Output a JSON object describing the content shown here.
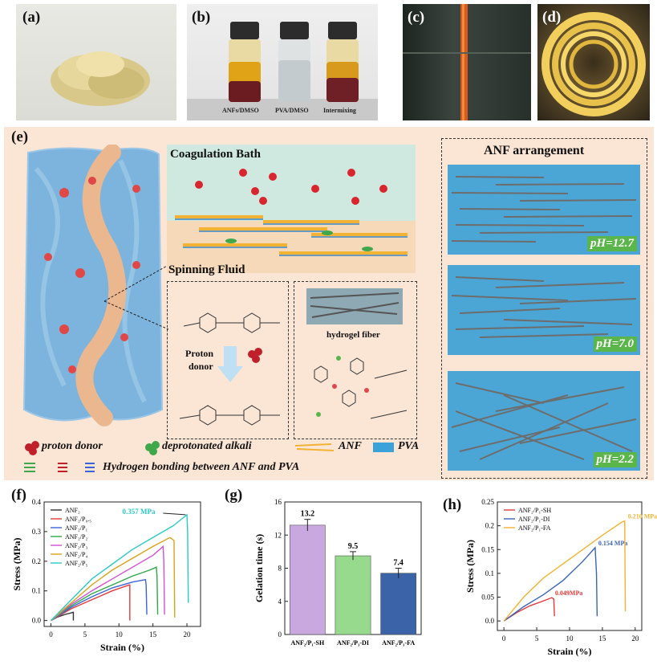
{
  "panels": {
    "a": "(a)",
    "b": "(b)",
    "c": "(c)",
    "d": "(d)",
    "e": "(e)",
    "f": "(f)",
    "g": "(g)",
    "h": "(h)"
  },
  "vials": [
    "ANFs/DMSO",
    "PVA/DMSO",
    "Intermixing"
  ],
  "schematic": {
    "coag": "Coagulation Bath",
    "spin": "Spinning Fluid",
    "arrangement": "ANF arrangement",
    "hydrogel": "hydrogel fiber",
    "proton": "Proton",
    "donor": "donor",
    "ph": [
      "pH=12.7",
      "pH=7.0",
      "pH=2.2"
    ],
    "legend": {
      "proton_donor": "proton donor",
      "deprotonated": "deprotonated alkali",
      "anf": "ANF",
      "pva": "PVA",
      "hbond": "Hydrogen bonding between ANF and PVA"
    }
  },
  "colors": {
    "bath": "#cfe9e0",
    "anf": "#f2b233",
    "pva": "#3aa2d9",
    "green": "#5ab54b",
    "red": "#c0202a"
  },
  "chart_data": [
    {
      "type": "line",
      "panel": "f",
      "xlabel": "Strain (%)",
      "ylabel": "Stress (MPa)",
      "xlim": [
        -1,
        22
      ],
      "ylim": [
        -0.02,
        0.4
      ],
      "xticks": [
        0,
        5,
        10,
        15,
        20
      ],
      "yticks": [
        0.0,
        0.1,
        0.2,
        0.3,
        0.4
      ],
      "legend_position": "top-left",
      "annotation": "0.357 MPa",
      "series": [
        {
          "name": "ANF₂",
          "color": "#333333",
          "x": [
            0,
            1,
            2,
            3,
            3.3,
            3.3
          ],
          "y": [
            0,
            0.012,
            0.02,
            0.026,
            0.028,
            0
          ]
        },
        {
          "name": "ANF₂/P₀.₅",
          "color": "#e23a3a",
          "x": [
            0,
            3,
            6,
            9,
            11.5,
            11.6,
            11.6
          ],
          "y": [
            0,
            0.04,
            0.07,
            0.1,
            0.12,
            0.12,
            0
          ]
        },
        {
          "name": "ANF₂/P₁",
          "color": "#3a64d8",
          "x": [
            0,
            3,
            6,
            9,
            12,
            13.9,
            14,
            14.1
          ],
          "y": [
            0,
            0.045,
            0.08,
            0.11,
            0.13,
            0.138,
            0.12,
            0.02
          ]
        },
        {
          "name": "ANF₂/P₂",
          "color": "#2da84a",
          "x": [
            0,
            3,
            6,
            9,
            12,
            14.5,
            15.5,
            15.6,
            15.7
          ],
          "y": [
            0,
            0.05,
            0.09,
            0.12,
            0.15,
            0.17,
            0.18,
            0.15,
            0.02
          ]
        },
        {
          "name": "ANF₂/P₃",
          "color": "#d24fd6",
          "x": [
            0,
            3,
            6,
            9,
            12,
            15,
            16.5,
            16.6,
            16.7
          ],
          "y": [
            0,
            0.055,
            0.1,
            0.14,
            0.18,
            0.22,
            0.25,
            0.2,
            0.02
          ]
        },
        {
          "name": "ANF₂/P₄",
          "color": "#d9a21b",
          "x": [
            0,
            3,
            6,
            9,
            12,
            15,
            17.5,
            18.1,
            18.2
          ],
          "y": [
            0,
            0.06,
            0.12,
            0.17,
            0.21,
            0.25,
            0.28,
            0.27,
            0.01
          ]
        },
        {
          "name": "ANF₂/P₅",
          "color": "#2bc9c6",
          "x": [
            0,
            3,
            6,
            9,
            12,
            15,
            18,
            20,
            20.1,
            20.2
          ],
          "y": [
            0,
            0.07,
            0.14,
            0.19,
            0.24,
            0.28,
            0.32,
            0.357,
            0.3,
            0.06
          ]
        }
      ]
    },
    {
      "type": "bar",
      "panel": "g",
      "ylabel": "Gelation time (s)",
      "categories": [
        "ANF₂/P₁-SH",
        "ANF₂/P₁-DI",
        "ANF₂/P₁-FA"
      ],
      "values": [
        13.2,
        9.5,
        7.4
      ],
      "errors": [
        0.7,
        0.5,
        0.6
      ],
      "value_labels": [
        "13.2",
        "9.5",
        "7.4"
      ],
      "colors": [
        "#c8a8df",
        "#97d98d",
        "#3a63a8"
      ],
      "ylim": [
        0,
        16
      ],
      "yticks": [
        0,
        4,
        8,
        12,
        16
      ]
    },
    {
      "type": "line",
      "panel": "h",
      "xlabel": "Strain (%)",
      "ylabel": "Stress (MPa)",
      "xlim": [
        -1,
        21
      ],
      "ylim": [
        -0.02,
        0.25
      ],
      "xticks": [
        0,
        5,
        10,
        15,
        20
      ],
      "yticks": [
        0.0,
        0.05,
        0.1,
        0.15,
        0.2,
        0.25
      ],
      "legend_position": "top-left",
      "series": [
        {
          "name": "ANF₂/P₁-SH",
          "color": "#e23a3a",
          "label": "0.049MPa",
          "x": [
            0,
            2,
            4,
            6,
            7.3,
            7.6,
            7.7
          ],
          "y": [
            0,
            0.018,
            0.032,
            0.042,
            0.049,
            0.046,
            0.01
          ]
        },
        {
          "name": "ANF₂/P₁-DI",
          "color": "#3a64b8",
          "label": "0.154 MPa",
          "x": [
            0,
            3,
            6,
            9,
            12,
            13.9,
            14.1,
            14.2
          ],
          "y": [
            0,
            0.03,
            0.055,
            0.085,
            0.125,
            0.154,
            0.1,
            0.01
          ]
        },
        {
          "name": "ANF₂/P₁-FA",
          "color": "#f2b233",
          "label": "0.210 MPa",
          "x": [
            0,
            3,
            6,
            9,
            12,
            15,
            18,
            18.4,
            18.5
          ],
          "y": [
            0,
            0.05,
            0.09,
            0.12,
            0.15,
            0.18,
            0.208,
            0.21,
            0.02
          ]
        }
      ]
    }
  ]
}
